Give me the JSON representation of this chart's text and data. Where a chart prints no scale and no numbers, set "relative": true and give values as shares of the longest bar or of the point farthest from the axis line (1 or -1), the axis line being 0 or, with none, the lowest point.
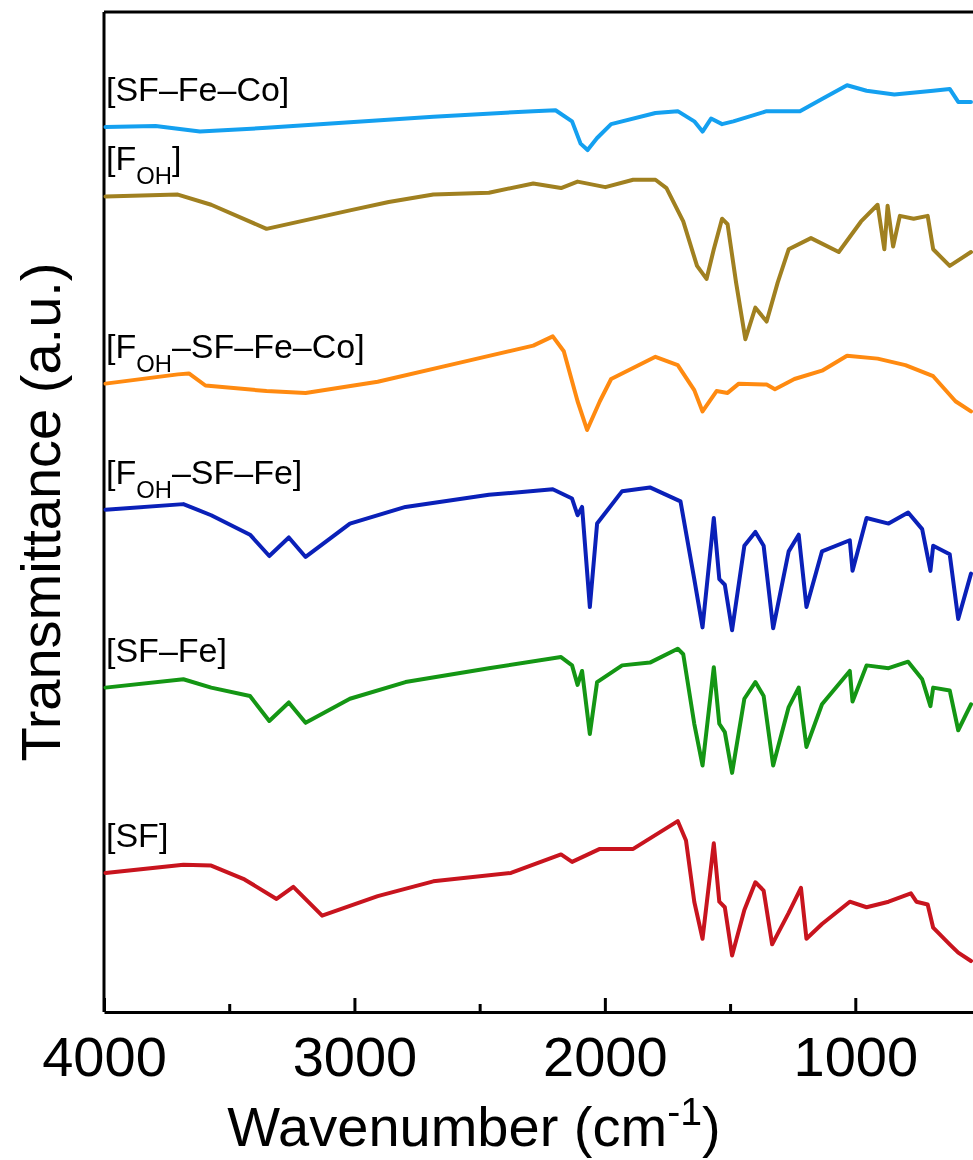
{
  "chart_data": {
    "type": "line",
    "xlabel": "Wavenumber (cm$^{-1}$)",
    "ylabel": "Transmittance (a.u.)",
    "relative": true,
    "legend": false,
    "grid": false,
    "xlim": [
      4000,
      530
    ],
    "xticks": [
      4000,
      {
        "value": 3500,
        "label": null
      },
      3000,
      {
        "value": 2500,
        "label": null
      },
      2000,
      {
        "value": 1500,
        "label": null
      },
      1000
    ],
    "series": [
      {
        "name": "[SF–Fe–Co]",
        "color": "#14a0f0",
        "x": [
          3994,
          3794,
          3617,
          3351,
          3018,
          2685,
          2286,
          2197,
          2131,
          2097,
          2069,
          2031,
          1975,
          1798,
          1709,
          1643,
          1610,
          1576,
          1532,
          1487,
          1354,
          1221,
          1133,
          1033,
          955,
          844,
          689,
          623,
          589,
          538
        ],
        "values": [
          0.955,
          0.956,
          0.95,
          0.954,
          0.96,
          0.966,
          0.972,
          0.973,
          0.961,
          0.937,
          0.93,
          0.943,
          0.958,
          0.97,
          0.972,
          0.961,
          0.95,
          0.964,
          0.958,
          0.961,
          0.972,
          0.972,
          0.985,
          1.0,
          0.994,
          0.99,
          0.994,
          0.996,
          0.982,
          0.982
        ]
      },
      {
        "name": "[F$_{OH}$]",
        "color": "#a08020",
        "x": [
          3994,
          3705,
          3572,
          3351,
          3018,
          2863,
          2685,
          2463,
          2286,
          2175,
          2109,
          1998,
          1887,
          1798,
          1754,
          1687,
          1632,
          1594,
          1565,
          1532,
          1510,
          1476,
          1439,
          1399,
          1354,
          1310,
          1266,
          1177,
          1066,
          977,
          911,
          884,
          871,
          849,
          822,
          767,
          711,
          689,
          623,
          538
        ],
        "values": [
          0.88,
          0.882,
          0.871,
          0.845,
          0.865,
          0.874,
          0.882,
          0.884,
          0.894,
          0.889,
          0.896,
          0.89,
          0.898,
          0.898,
          0.889,
          0.853,
          0.805,
          0.791,
          0.823,
          0.856,
          0.85,
          0.787,
          0.726,
          0.76,
          0.745,
          0.787,
          0.823,
          0.835,
          0.82,
          0.853,
          0.871,
          0.823,
          0.87,
          0.826,
          0.859,
          0.856,
          0.859,
          0.823,
          0.805,
          0.82
        ]
      },
      {
        "name": "[F$_{OH}$–SF–Fe–Co]",
        "color": "#ff8a10",
        "x": [
          3994,
          3705,
          3661,
          3595,
          3351,
          3195,
          2907,
          2574,
          2286,
          2208,
          2164,
          2109,
          2071,
          2020,
          1975,
          1798,
          1709,
          1643,
          1610,
          1554,
          1510,
          1465,
          1354,
          1321,
          1243,
          1133,
          1033,
          911,
          800,
          689,
          600,
          538
        ],
        "values": [
          0.678,
          0.688,
          0.689,
          0.676,
          0.67,
          0.668,
          0.68,
          0.701,
          0.719,
          0.729,
          0.713,
          0.659,
          0.628,
          0.659,
          0.683,
          0.707,
          0.698,
          0.671,
          0.648,
          0.67,
          0.668,
          0.678,
          0.677,
          0.672,
          0.683,
          0.692,
          0.708,
          0.705,
          0.698,
          0.686,
          0.659,
          0.648
        ]
      },
      {
        "name": "[F$_{OH}$–SF–Fe]",
        "color": "#0a20b8",
        "x": [
          3994,
          3683,
          3572,
          3417,
          3340,
          3262,
          3195,
          3018,
          2796,
          2463,
          2208,
          2131,
          2109,
          2091,
          2060,
          2031,
          1931,
          1820,
          1698,
          1643,
          1610,
          1565,
          1543,
          1521,
          1492,
          1443,
          1399,
          1366,
          1328,
          1266,
          1226,
          1195,
          1133,
          1022,
          1011,
          955,
          867,
          789,
          733,
          700,
          689,
          623,
          589,
          538
        ],
        "values": [
          0.542,
          0.548,
          0.536,
          0.515,
          0.492,
          0.512,
          0.491,
          0.527,
          0.545,
          0.558,
          0.564,
          0.554,
          0.536,
          0.545,
          0.437,
          0.527,
          0.562,
          0.566,
          0.551,
          0.467,
          0.415,
          0.533,
          0.467,
          0.461,
          0.412,
          0.503,
          0.518,
          0.503,
          0.414,
          0.497,
          0.515,
          0.437,
          0.497,
          0.509,
          0.476,
          0.533,
          0.527,
          0.539,
          0.521,
          0.476,
          0.503,
          0.494,
          0.424,
          0.473
        ]
      },
      {
        "name": "[SF–Fe]",
        "color": "#149614",
        "x": [
          3994,
          3683,
          3572,
          3417,
          3340,
          3262,
          3195,
          3018,
          2796,
          2463,
          2175,
          2131,
          2109,
          2091,
          2060,
          2031,
          1931,
          1820,
          1709,
          1687,
          1643,
          1610,
          1565,
          1543,
          1521,
          1492,
          1443,
          1399,
          1366,
          1328,
          1266,
          1226,
          1195,
          1133,
          1022,
          1011,
          955,
          867,
          789,
          733,
          700,
          689,
          623,
          589,
          538
        ],
        "values": [
          0.35,
          0.359,
          0.35,
          0.341,
          0.314,
          0.334,
          0.312,
          0.338,
          0.356,
          0.371,
          0.383,
          0.374,
          0.353,
          0.368,
          0.3,
          0.356,
          0.374,
          0.377,
          0.392,
          0.386,
          0.311,
          0.266,
          0.372,
          0.311,
          0.302,
          0.258,
          0.338,
          0.356,
          0.341,
          0.266,
          0.329,
          0.35,
          0.286,
          0.332,
          0.368,
          0.335,
          0.374,
          0.371,
          0.378,
          0.359,
          0.33,
          0.35,
          0.347,
          0.304,
          0.332
        ]
      },
      {
        "name": "[SF]",
        "color": "#c8141e",
        "x": [
          3994,
          3683,
          3572,
          3439,
          3311,
          3244,
          3129,
          2907,
          2685,
          2375,
          2175,
          2131,
          2020,
          1887,
          1709,
          1676,
          1643,
          1610,
          1565,
          1543,
          1521,
          1492,
          1443,
          1399,
          1366,
          1332,
          1266,
          1217,
          1195,
          1133,
          1022,
          955,
          867,
          778,
          756,
          711,
          689,
          623,
          589,
          538
        ],
        "values": [
          0.15,
          0.159,
          0.158,
          0.143,
          0.122,
          0.135,
          0.104,
          0.125,
          0.141,
          0.15,
          0.17,
          0.162,
          0.176,
          0.176,
          0.206,
          0.185,
          0.119,
          0.079,
          0.182,
          0.119,
          0.113,
          0.061,
          0.11,
          0.14,
          0.131,
          0.073,
          0.107,
          0.134,
          0.079,
          0.095,
          0.119,
          0.113,
          0.119,
          0.128,
          0.119,
          0.116,
          0.091,
          0.073,
          0.064,
          0.055
        ]
      }
    ]
  }
}
